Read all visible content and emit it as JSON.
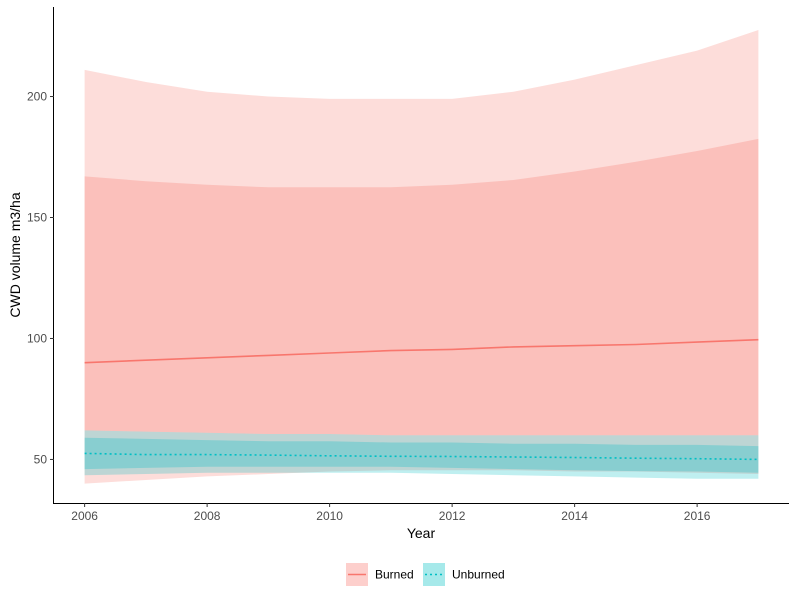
{
  "chart_data": {
    "type": "line",
    "title": "",
    "xlabel": "Year",
    "ylabel": "CWD volume m3/ha",
    "xlim": [
      2005.5,
      2017.5
    ],
    "ylim": [
      32,
      237
    ],
    "x_ticks": [
      2006,
      2008,
      2010,
      2012,
      2014,
      2016
    ],
    "y_ticks": [
      50,
      100,
      150,
      200
    ],
    "grid": false,
    "legend_position": "bottom",
    "x": [
      2006,
      2007,
      2008,
      2009,
      2010,
      2011,
      2012,
      2013,
      2014,
      2015,
      2016,
      2017
    ],
    "series": [
      {
        "name": "Burned",
        "color": "#F8766D",
        "line_style": "solid",
        "values": [
          90,
          91,
          92,
          93,
          94,
          95,
          95.5,
          96.5,
          97,
          97.5,
          98.5,
          99.5
        ],
        "inner_band": {
          "lower": [
            62,
            61.5,
            61,
            60.5,
            60.5,
            60,
            60,
            60,
            60,
            60,
            60,
            60
          ],
          "upper": [
            167,
            165,
            163.5,
            162.5,
            162.5,
            162.5,
            163.5,
            165.5,
            169,
            173,
            177.5,
            182.5
          ]
        },
        "outer_band": {
          "lower": [
            40,
            41.5,
            43,
            44,
            45,
            45.5,
            45.5,
            45.5,
            45,
            45,
            44.5,
            44
          ],
          "upper": [
            211,
            206,
            202,
            200,
            199,
            199,
            199,
            202,
            207,
            213,
            219,
            227.5
          ]
        }
      },
      {
        "name": "Unburned",
        "color": "#00BFC4",
        "line_style": "dotted",
        "values": [
          52.5,
          52,
          52,
          51.8,
          51.5,
          51.3,
          51.2,
          51,
          50.8,
          50.5,
          50.3,
          50
        ],
        "inner_band": {
          "lower": [
            46,
            46.5,
            47,
            47,
            47,
            47,
            46.5,
            46,
            45.5,
            45.2,
            45,
            44.5
          ],
          "upper": [
            59,
            58.5,
            58,
            57.5,
            57.5,
            57,
            57,
            56.5,
            56.5,
            56,
            56,
            55.5
          ]
        },
        "outer_band": {
          "lower": [
            43.5,
            44,
            44.5,
            44.5,
            44.5,
            44.5,
            44,
            43.5,
            43,
            42.5,
            42,
            42
          ],
          "upper": [
            62,
            61.5,
            61,
            60.5,
            60.5,
            60,
            60,
            60,
            60,
            60,
            60,
            60
          ]
        }
      }
    ]
  }
}
